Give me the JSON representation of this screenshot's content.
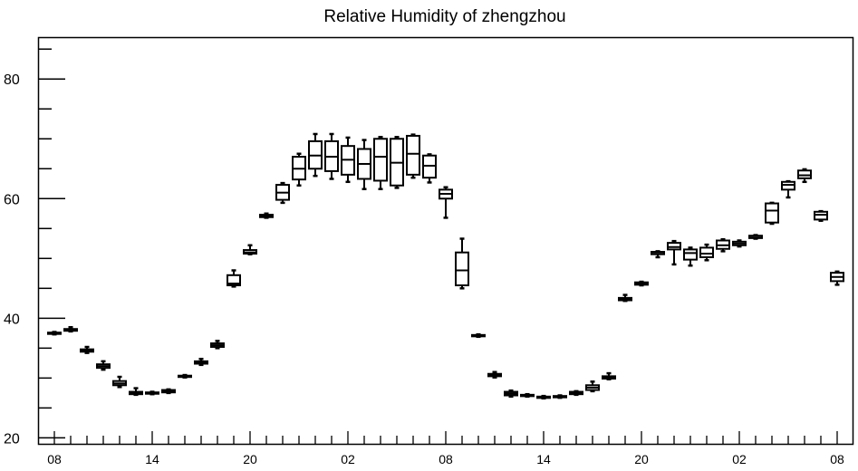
{
  "chart_data": {
    "type": "boxplot",
    "title": "Relative Humidity of zhengzhou",
    "xlabel": "",
    "ylabel": "",
    "ylim": [
      19,
      87
    ],
    "yticks": [
      20,
      40,
      60,
      80
    ],
    "x_tick_labels": [
      "08",
      "14",
      "20",
      "02",
      "08",
      "14",
      "20",
      "02",
      "08"
    ],
    "x_tick_label_slots": [
      0,
      6,
      12,
      18,
      24,
      30,
      36,
      42,
      48
    ],
    "minor_ticks": true,
    "grid": false,
    "series": [
      {
        "slot": 0,
        "min": 37.3,
        "q1": 37.4,
        "median": 37.5,
        "q3": 37.6,
        "max": 37.7
      },
      {
        "slot": 1,
        "min": 37.8,
        "q1": 37.9,
        "median": 38.0,
        "q3": 38.2,
        "max": 38.5
      },
      {
        "slot": 2,
        "min": 34.2,
        "q1": 34.4,
        "median": 34.6,
        "q3": 34.8,
        "max": 35.2
      },
      {
        "slot": 3,
        "min": 31.4,
        "q1": 31.7,
        "median": 32.0,
        "q3": 32.3,
        "max": 32.8
      },
      {
        "slot": 4,
        "min": 28.5,
        "q1": 28.8,
        "median": 29.1,
        "q3": 29.5,
        "max": 30.2
      },
      {
        "slot": 5,
        "min": 27.2,
        "q1": 27.3,
        "median": 27.5,
        "q3": 27.7,
        "max": 28.3
      },
      {
        "slot": 6,
        "min": 27.3,
        "q1": 27.4,
        "median": 27.5,
        "q3": 27.6,
        "max": 27.7
      },
      {
        "slot": 7,
        "min": 27.5,
        "q1": 27.6,
        "median": 27.8,
        "q3": 28.0,
        "max": 28.1
      },
      {
        "slot": 8,
        "min": 30.1,
        "q1": 30.2,
        "median": 30.3,
        "q3": 30.4,
        "max": 30.5
      },
      {
        "slot": 9,
        "min": 32.2,
        "q1": 32.4,
        "median": 32.6,
        "q3": 32.8,
        "max": 33.2
      },
      {
        "slot": 10,
        "min": 35.0,
        "q1": 35.2,
        "median": 35.5,
        "q3": 35.8,
        "max": 36.2
      },
      {
        "slot": 11,
        "min": 45.3,
        "q1": 45.5,
        "median": 45.8,
        "q3": 47.2,
        "max": 48.0
      },
      {
        "slot": 12,
        "min": 50.7,
        "q1": 50.8,
        "median": 51.0,
        "q3": 51.4,
        "max": 52.2
      },
      {
        "slot": 13,
        "min": 56.8,
        "q1": 56.9,
        "median": 57.1,
        "q3": 57.3,
        "max": 57.5
      },
      {
        "slot": 14,
        "min": 59.3,
        "q1": 59.8,
        "median": 61.0,
        "q3": 62.3,
        "max": 62.6
      },
      {
        "slot": 15,
        "min": 62.2,
        "q1": 63.2,
        "median": 65.0,
        "q3": 67.0,
        "max": 67.5
      },
      {
        "slot": 16,
        "min": 63.8,
        "q1": 65.0,
        "median": 67.2,
        "q3": 69.6,
        "max": 70.8
      },
      {
        "slot": 17,
        "min": 63.3,
        "q1": 64.6,
        "median": 67.0,
        "q3": 69.6,
        "max": 70.8
      },
      {
        "slot": 18,
        "min": 62.8,
        "q1": 64.0,
        "median": 66.5,
        "q3": 68.8,
        "max": 70.2
      },
      {
        "slot": 19,
        "min": 61.6,
        "q1": 63.3,
        "median": 65.8,
        "q3": 68.3,
        "max": 69.8
      },
      {
        "slot": 20,
        "min": 61.6,
        "q1": 63.0,
        "median": 67.0,
        "q3": 70.0,
        "max": 70.3
      },
      {
        "slot": 21,
        "min": 61.8,
        "q1": 62.2,
        "median": 66.0,
        "q3": 70.0,
        "max": 70.3
      },
      {
        "slot": 22,
        "min": 63.5,
        "q1": 64.0,
        "median": 67.5,
        "q3": 70.5,
        "max": 70.7
      },
      {
        "slot": 23,
        "min": 62.7,
        "q1": 63.5,
        "median": 65.5,
        "q3": 67.2,
        "max": 67.4
      },
      {
        "slot": 24,
        "min": 56.8,
        "q1": 60.0,
        "median": 60.8,
        "q3": 61.5,
        "max": 61.9
      },
      {
        "slot": 25,
        "min": 45.0,
        "q1": 45.5,
        "median": 48.0,
        "q3": 51.0,
        "max": 53.3
      },
      {
        "slot": 26,
        "min": 36.9,
        "q1": 37.0,
        "median": 37.1,
        "q3": 37.2,
        "max": 37.3
      },
      {
        "slot": 27,
        "min": 30.1,
        "q1": 30.3,
        "median": 30.5,
        "q3": 30.7,
        "max": 31.0
      },
      {
        "slot": 28,
        "min": 26.9,
        "q1": 27.1,
        "median": 27.4,
        "q3": 27.7,
        "max": 27.9
      },
      {
        "slot": 29,
        "min": 26.9,
        "q1": 27.0,
        "median": 27.1,
        "q3": 27.2,
        "max": 27.3
      },
      {
        "slot": 30,
        "min": 26.6,
        "q1": 26.7,
        "median": 26.8,
        "q3": 26.9,
        "max": 27.0
      },
      {
        "slot": 31,
        "min": 26.7,
        "q1": 26.8,
        "median": 26.9,
        "q3": 27.0,
        "max": 27.1
      },
      {
        "slot": 32,
        "min": 27.2,
        "q1": 27.3,
        "median": 27.5,
        "q3": 27.7,
        "max": 27.8
      },
      {
        "slot": 33,
        "min": 27.8,
        "q1": 28.0,
        "median": 28.4,
        "q3": 28.8,
        "max": 29.4
      },
      {
        "slot": 34,
        "min": 29.8,
        "q1": 29.9,
        "median": 30.1,
        "q3": 30.3,
        "max": 30.8
      },
      {
        "slot": 35,
        "min": 42.9,
        "q1": 43.0,
        "median": 43.2,
        "q3": 43.4,
        "max": 43.9
      },
      {
        "slot": 36,
        "min": 45.5,
        "q1": 45.6,
        "median": 45.8,
        "q3": 46.0,
        "max": 46.1
      },
      {
        "slot": 37,
        "min": 50.2,
        "q1": 50.7,
        "median": 51.0,
        "q3": 51.1,
        "max": 51.2
      },
      {
        "slot": 38,
        "min": 49.0,
        "q1": 51.5,
        "median": 51.9,
        "q3": 52.6,
        "max": 52.9
      },
      {
        "slot": 39,
        "min": 48.8,
        "q1": 49.8,
        "median": 50.9,
        "q3": 51.5,
        "max": 51.8
      },
      {
        "slot": 40,
        "min": 49.7,
        "q1": 50.2,
        "median": 50.8,
        "q3": 51.8,
        "max": 52.3
      },
      {
        "slot": 41,
        "min": 51.2,
        "q1": 51.6,
        "median": 52.2,
        "q3": 53.0,
        "max": 53.2
      },
      {
        "slot": 42,
        "min": 52.0,
        "q1": 52.2,
        "median": 52.5,
        "q3": 52.8,
        "max": 53.0
      },
      {
        "slot": 43,
        "min": 53.3,
        "q1": 53.4,
        "median": 53.5,
        "q3": 53.8,
        "max": 53.9
      },
      {
        "slot": 44,
        "min": 55.8,
        "q1": 56.0,
        "median": 58.0,
        "q3": 59.2,
        "max": 59.3
      },
      {
        "slot": 45,
        "min": 60.2,
        "q1": 61.5,
        "median": 62.3,
        "q3": 62.8,
        "max": 62.9
      },
      {
        "slot": 46,
        "min": 62.8,
        "q1": 63.4,
        "median": 63.9,
        "q3": 64.7,
        "max": 64.9
      },
      {
        "slot": 47,
        "min": 56.3,
        "q1": 56.5,
        "median": 57.3,
        "q3": 57.8,
        "max": 57.9
      },
      {
        "slot": 48,
        "min": 45.6,
        "q1": 46.2,
        "median": 46.9,
        "q3": 47.6,
        "max": 47.8
      }
    ]
  }
}
